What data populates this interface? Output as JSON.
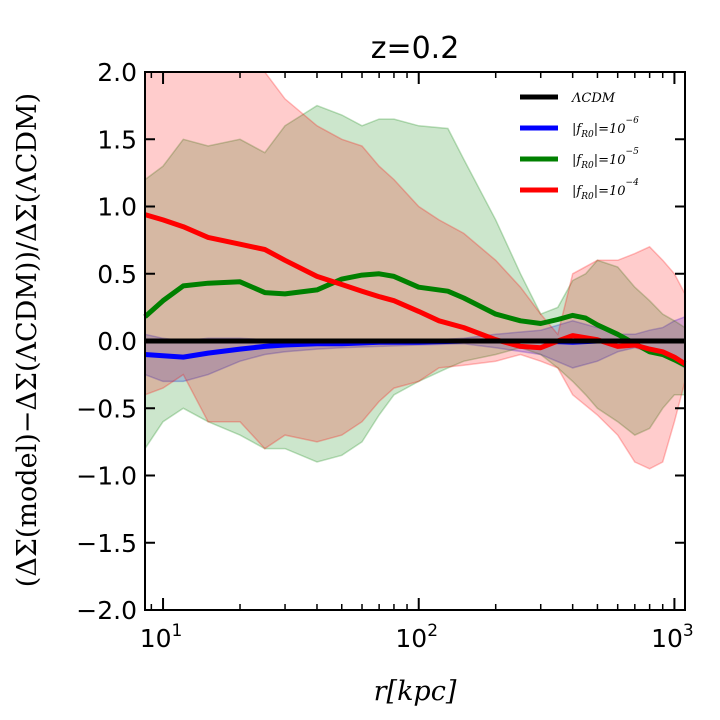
{
  "chart_data": {
    "type": "line",
    "title": "z=0.2",
    "xlabel": "r[kpc]",
    "ylabel": "(ΔΣ(model)−ΔΣ(ΛCDM))/ΔΣ(ΛCDM)",
    "xscale": "log",
    "xlim": [
      8.5,
      1100
    ],
    "ylim": [
      -2.0,
      2.0
    ],
    "yticks": [
      -2.0,
      -1.5,
      -1.0,
      -0.5,
      0.0,
      0.5,
      1.0,
      1.5,
      2.0
    ],
    "ytick_labels": [
      "−2.0",
      "−1.5",
      "−1.0",
      "−0.5",
      "0.0",
      "0.5",
      "1.0",
      "1.5",
      "2.0"
    ],
    "xticks": [
      {
        "value": 10,
        "base": "10",
        "exp": "1"
      },
      {
        "value": 100,
        "base": "10",
        "exp": "2"
      },
      {
        "value": 1000,
        "base": "10",
        "exp": "3"
      }
    ],
    "legend_position": "top-right",
    "series": [
      {
        "name": "ΛCDM",
        "color": "#000000",
        "x": [
          8.5,
          1100
        ],
        "y": [
          0.0,
          0.0
        ]
      },
      {
        "name": "|f_R0|=10^-6",
        "color": "#0000ff",
        "x": [
          8.5,
          10,
          12,
          15,
          20,
          25,
          30,
          40,
          50,
          70,
          100,
          150,
          200,
          300,
          400,
          500,
          600,
          700,
          800,
          900,
          1000,
          1100
        ],
        "y": [
          -0.1,
          -0.11,
          -0.12,
          -0.09,
          -0.06,
          -0.04,
          -0.03,
          -0.02,
          -0.02,
          -0.01,
          -0.01,
          0.0,
          0.0,
          0.0,
          -0.01,
          0.0,
          0.0,
          0.0,
          0.0,
          0.0,
          0.0,
          0.0
        ],
        "band_upper": [
          0.05,
          0.02,
          0.0,
          0.02,
          0.02,
          0.01,
          0.01,
          0.0,
          0.0,
          0.0,
          0.0,
          0.02,
          0.05,
          0.08,
          0.15,
          0.1,
          0.05,
          0.05,
          0.08,
          0.1,
          0.15,
          0.18
        ],
        "band_lower": [
          -0.25,
          -0.3,
          -0.3,
          -0.25,
          -0.15,
          -0.1,
          -0.08,
          -0.06,
          -0.05,
          -0.04,
          -0.03,
          -0.02,
          -0.05,
          -0.1,
          -0.2,
          -0.15,
          -0.08,
          -0.05,
          -0.08,
          -0.1,
          -0.15,
          -0.2
        ]
      },
      {
        "name": "|f_R0|=10^-5",
        "color": "#008000",
        "x": [
          8.5,
          10,
          12,
          15,
          20,
          25,
          30,
          40,
          50,
          60,
          70,
          80,
          100,
          130,
          150,
          200,
          250,
          300,
          350,
          400,
          450,
          500,
          600,
          700,
          800,
          900,
          1000,
          1100
        ],
        "y": [
          0.18,
          0.3,
          0.41,
          0.43,
          0.44,
          0.36,
          0.35,
          0.38,
          0.46,
          0.49,
          0.5,
          0.48,
          0.4,
          0.37,
          0.32,
          0.2,
          0.15,
          0.13,
          0.16,
          0.19,
          0.17,
          0.12,
          0.05,
          -0.02,
          -0.08,
          -0.1,
          -0.14,
          -0.18
        ],
        "band_upper": [
          1.2,
          1.3,
          1.5,
          1.45,
          1.5,
          1.4,
          1.6,
          1.75,
          1.68,
          1.6,
          1.65,
          1.65,
          1.6,
          1.58,
          1.35,
          0.9,
          0.5,
          0.2,
          0.25,
          0.45,
          0.5,
          0.6,
          0.55,
          0.4,
          0.3,
          0.2,
          0.15,
          0.1
        ],
        "band_lower": [
          -0.8,
          -0.6,
          -0.5,
          -0.6,
          -0.7,
          -0.8,
          -0.8,
          -0.9,
          -0.85,
          -0.75,
          -0.55,
          -0.4,
          -0.3,
          -0.2,
          -0.15,
          -0.1,
          -0.05,
          -0.1,
          -0.2,
          -0.3,
          -0.4,
          -0.5,
          -0.6,
          -0.7,
          -0.65,
          -0.5,
          -0.4,
          -0.4
        ]
      },
      {
        "name": "|f_R0|=10^-4",
        "color": "#ff0000",
        "x": [
          8.5,
          10,
          12,
          15,
          20,
          25,
          30,
          40,
          50,
          60,
          70,
          80,
          100,
          120,
          150,
          200,
          250,
          300,
          350,
          400,
          500,
          600,
          700,
          800,
          900,
          1000,
          1100
        ],
        "y": [
          0.94,
          0.9,
          0.85,
          0.77,
          0.72,
          0.68,
          0.6,
          0.48,
          0.42,
          0.37,
          0.33,
          0.3,
          0.22,
          0.15,
          0.1,
          0.01,
          -0.04,
          -0.05,
          0.0,
          0.04,
          0.01,
          -0.04,
          -0.03,
          -0.06,
          -0.08,
          -0.12,
          -0.17
        ],
        "band_upper": [
          2.0,
          2.0,
          2.0,
          2.0,
          2.0,
          2.0,
          1.8,
          1.6,
          1.5,
          1.45,
          1.3,
          1.2,
          1.0,
          0.9,
          0.8,
          0.6,
          0.4,
          0.2,
          0.05,
          0.5,
          0.6,
          0.6,
          0.65,
          0.7,
          0.6,
          0.5,
          0.35
        ],
        "band_lower": [
          -0.4,
          -0.35,
          -0.25,
          -0.6,
          -0.6,
          -0.8,
          -0.7,
          -0.75,
          -0.7,
          -0.6,
          -0.45,
          -0.35,
          -0.3,
          -0.2,
          -0.18,
          -0.15,
          -0.1,
          -0.15,
          -0.2,
          -0.4,
          -0.55,
          -0.7,
          -0.9,
          -0.95,
          -0.9,
          -0.6,
          -0.3
        ]
      }
    ]
  }
}
